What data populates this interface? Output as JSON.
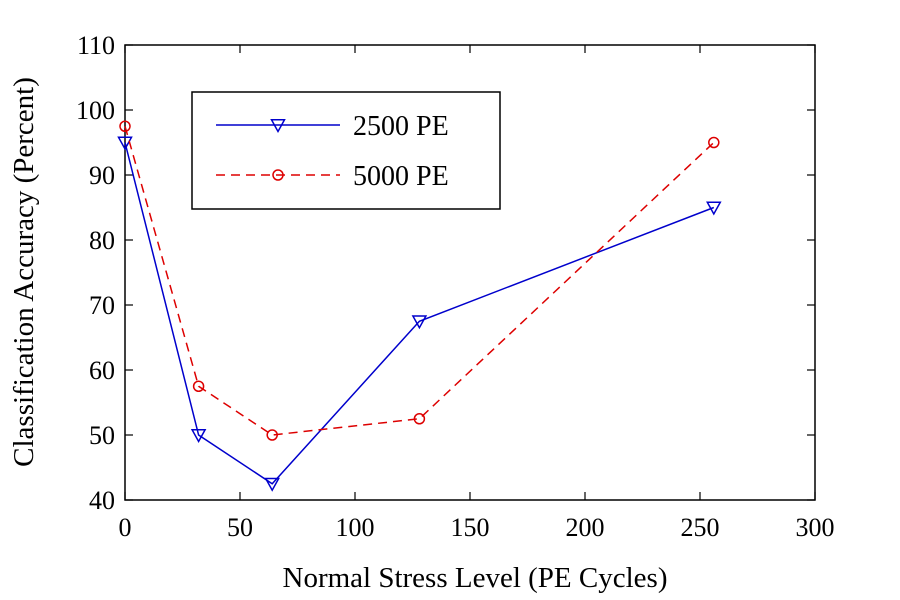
{
  "chart_data": {
    "type": "line",
    "xlabel": "Normal Stress Level (PE Cycles)",
    "ylabel": "Classification Accuracy (Percent)",
    "xlim": [
      0,
      300
    ],
    "ylim": [
      40,
      110
    ],
    "xticks": [
      0,
      50,
      100,
      150,
      200,
      250,
      300
    ],
    "yticks": [
      40,
      50,
      60,
      70,
      80,
      90,
      100,
      110
    ],
    "grid": false,
    "legend_position": "top-left",
    "series": [
      {
        "name": "2500 PE",
        "color": "#0000cc",
        "line_style": "solid",
        "marker": "triangle-down",
        "x": [
          0,
          32,
          64,
          128,
          256
        ],
        "y": [
          95,
          50,
          42.5,
          67.5,
          85
        ]
      },
      {
        "name": "5000 PE",
        "color": "#dd0000",
        "line_style": "dashed",
        "marker": "circle",
        "x": [
          0,
          32,
          64,
          128,
          256
        ],
        "y": [
          97.5,
          57.5,
          50,
          52.5,
          95
        ]
      }
    ]
  }
}
